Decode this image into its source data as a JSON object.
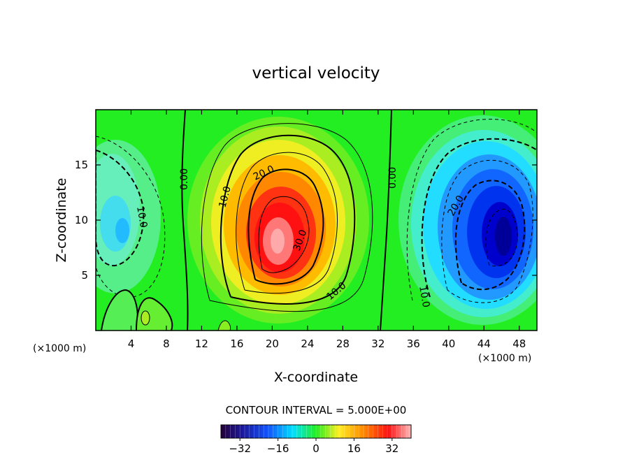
{
  "chart_data": {
    "type": "heatmap",
    "title": "vertical velocity",
    "xlabel": "X-coordinate",
    "ylabel": "Z-coordinate",
    "x_unit": "(×1000 m)",
    "y_unit": "(×1000 m)",
    "xlim": [
      0,
      50
    ],
    "ylim": [
      0,
      20
    ],
    "x_ticks": [
      "4",
      "8",
      "12",
      "16",
      "20",
      "24",
      "28",
      "32",
      "36",
      "40",
      "44",
      "48"
    ],
    "y_ticks": [
      "5",
      "10",
      "15"
    ],
    "contour_interval_text": "CONTOUR INTERVAL =  5.000E+00",
    "contour_labels": [
      "0.00",
      "10.0",
      "20.0",
      "30.0",
      "10.0",
      "0.00",
      "10.0",
      "20.0",
      "10.0"
    ],
    "colorbar": {
      "range": [
        -40,
        40
      ],
      "tick_labels": [
        "−32",
        "−16",
        "0",
        "16",
        "32"
      ],
      "tick_values": [
        -32,
        -16,
        0,
        16,
        32
      ]
    },
    "features": [
      {
        "kind": "updraft",
        "x": 21,
        "z": 8.5,
        "peak": 38
      },
      {
        "kind": "downdraft",
        "x": 45.5,
        "z": 8.5,
        "peak": -38
      },
      {
        "kind": "downdraft",
        "x": 2.5,
        "z": 10,
        "peak": -14
      }
    ],
    "colors": {
      "plot_background": "#22ee22",
      "strong_positive": "#ff7777",
      "strong_negative": "#0000cc"
    }
  }
}
